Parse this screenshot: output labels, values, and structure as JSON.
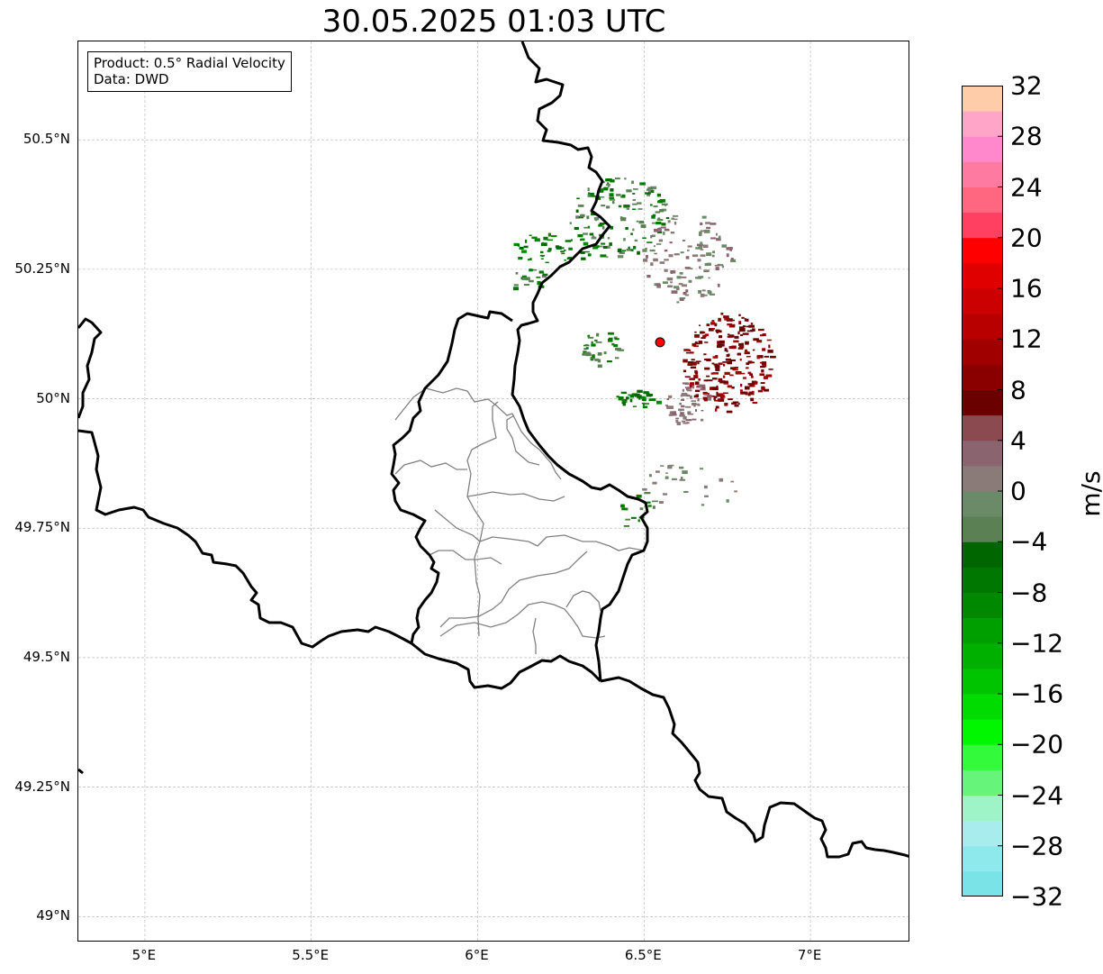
{
  "title": "30.05.2025 01:03 UTC",
  "info_box": {
    "product_line": "Product: 0.5° Radial Velocity",
    "data_line": "Data: DWD"
  },
  "map": {
    "extent": {
      "lon_min": 4.8,
      "lon_max": 7.3,
      "lat_min": 48.95,
      "lat_max": 50.69
    },
    "gridlines": true,
    "lon_ticks": [
      {
        "value": 5.0,
        "label": "5°E"
      },
      {
        "value": 5.5,
        "label": "5.5°E"
      },
      {
        "value": 6.0,
        "label": "6°E"
      },
      {
        "value": 6.5,
        "label": "6.5°E"
      },
      {
        "value": 7.0,
        "label": "7°E"
      }
    ],
    "lat_ticks": [
      {
        "value": 50.5,
        "label": "50.5°N"
      },
      {
        "value": 50.25,
        "label": "50.25°N"
      },
      {
        "value": 50.0,
        "label": "50°N"
      },
      {
        "value": 49.75,
        "label": "49.75°N"
      },
      {
        "value": 49.5,
        "label": "49.5°N"
      },
      {
        "value": 49.25,
        "label": "49.25°N"
      },
      {
        "value": 49.0,
        "label": "49°N"
      }
    ],
    "radar_site": {
      "lon": 6.548,
      "lat": 50.109,
      "color": "#ff0000"
    },
    "border_color": "#000000",
    "region_border_color": "#808080"
  },
  "colorbar": {
    "unit": "m/s",
    "vmin": -32,
    "vmax": 32,
    "tick_labels": [
      "32",
      "28",
      "24",
      "20",
      "16",
      "12",
      "8",
      "4",
      "0",
      "−4",
      "−8",
      "−12",
      "−16",
      "−20",
      "−24",
      "−28",
      "−32"
    ],
    "colors_bottom_to_top": [
      "#7ae3e8",
      "#8de9ec",
      "#a8eced",
      "#9ef4c6",
      "#66f57a",
      "#33fa3a",
      "#00f700",
      "#00db00",
      "#00c400",
      "#00b000",
      "#009f00",
      "#008900",
      "#007800",
      "#006600",
      "#5b8054",
      "#6b8a67",
      "#8a7a78",
      "#8a6570",
      "#8a4a50",
      "#6a0000",
      "#8a0000",
      "#a00000",
      "#b80000",
      "#cc0000",
      "#e00000",
      "#ff0000",
      "#ff4060",
      "#ff6680",
      "#ff7aa0",
      "#ff88cc",
      "#ffa6c8",
      "#ffccaa"
    ]
  }
}
